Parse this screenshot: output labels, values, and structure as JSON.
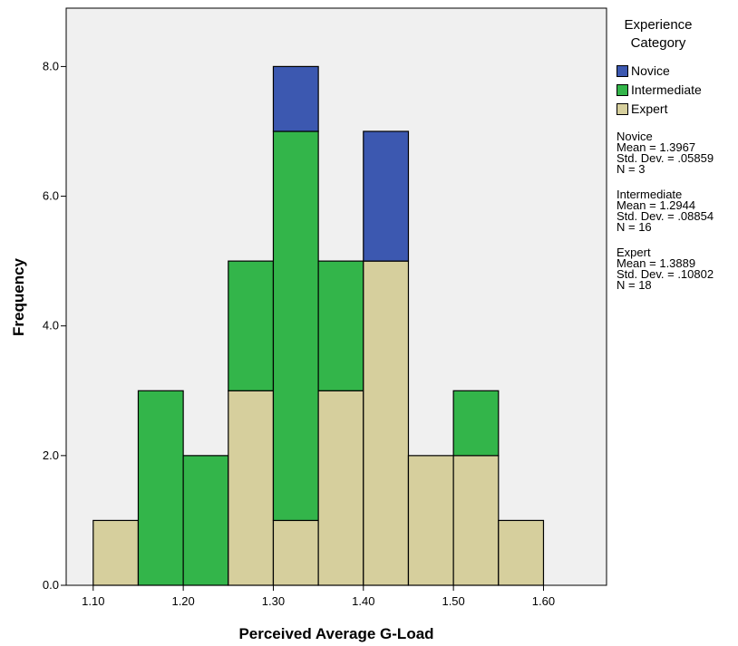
{
  "chart_data": {
    "type": "bar",
    "stacked": true,
    "bins": [
      {
        "from": 1.1,
        "to": 1.15
      },
      {
        "from": 1.15,
        "to": 1.2
      },
      {
        "from": 1.2,
        "to": 1.25
      },
      {
        "from": 1.25,
        "to": 1.3
      },
      {
        "from": 1.3,
        "to": 1.35
      },
      {
        "from": 1.35,
        "to": 1.4
      },
      {
        "from": 1.4,
        "to": 1.45
      },
      {
        "from": 1.45,
        "to": 1.5
      },
      {
        "from": 1.5,
        "to": 1.55
      },
      {
        "from": 1.55,
        "to": 1.6
      }
    ],
    "series": [
      {
        "name": "Expert",
        "color": "#d6cf9d",
        "values": [
          1,
          0,
          0,
          3,
          1,
          3,
          5,
          2,
          2,
          1
        ]
      },
      {
        "name": "Intermediate",
        "color": "#33b54a",
        "values": [
          0,
          3,
          2,
          2,
          6,
          2,
          0,
          0,
          1,
          0
        ]
      },
      {
        "name": "Novice",
        "color": "#3c58b0",
        "values": [
          0,
          0,
          0,
          0,
          1,
          0,
          2,
          0,
          0,
          0
        ]
      }
    ],
    "xlabel": "Perceived Average G-Load",
    "ylabel": "Frequency",
    "xlim": [
      1.07,
      1.67
    ],
    "ylim": [
      0,
      8.9
    ],
    "x_ticks": [
      "1.10",
      "1.20",
      "1.30",
      "1.40",
      "1.50",
      "1.60"
    ],
    "y_ticks": [
      "0.0",
      "2.0",
      "4.0",
      "6.0",
      "8.0"
    ],
    "plot_background": "#f0f0f0",
    "grid": false,
    "legend_position": "right",
    "legend": {
      "title_line1": "Experience",
      "title_line2": "Category",
      "entries": [
        {
          "label": "Novice",
          "color": "#3c58b0"
        },
        {
          "label": "Intermediate",
          "color": "#33b54a"
        },
        {
          "label": "Expert",
          "color": "#d6cf9d"
        }
      ]
    },
    "stats": [
      {
        "name": "Novice",
        "mean": "Mean = 1.3967",
        "sd": "Std. Dev. = .05859",
        "n": "N = 3"
      },
      {
        "name": "Intermediate",
        "mean": "Mean = 1.2944",
        "sd": "Std. Dev. = .08854",
        "n": "N = 16"
      },
      {
        "name": "Expert",
        "mean": "Mean = 1.3889",
        "sd": "Std. Dev. = .10802",
        "n": "N = 18"
      }
    ]
  }
}
